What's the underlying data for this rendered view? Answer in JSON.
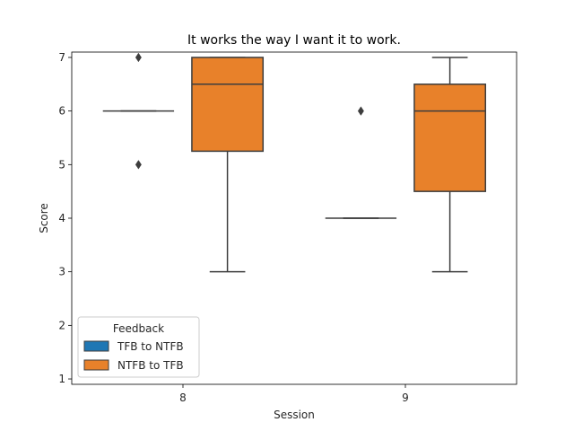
{
  "chart_data": {
    "type": "box",
    "title": "It works the way I want it to work.",
    "xlabel": "Session",
    "ylabel": "Score",
    "categories": [
      "8",
      "9"
    ],
    "ylim": [
      0.9,
      7.1
    ],
    "yticks": [
      1,
      2,
      3,
      4,
      5,
      6,
      7
    ],
    "legend": {
      "title": "Feedback",
      "placement": "lower-left",
      "entries": [
        "TFB to NTFB",
        "NTFB to TFB"
      ]
    },
    "series": [
      {
        "name": "TFB to NTFB",
        "color": "#1f77b4",
        "boxes": [
          {
            "category": "8",
            "min": 6,
            "q1": 6,
            "median": 6,
            "q3": 6,
            "max": 6,
            "outliers": [
              7,
              5
            ]
          },
          {
            "category": "9",
            "min": 4,
            "q1": 4,
            "median": 4,
            "q3": 4,
            "max": 4,
            "outliers": [
              6
            ]
          }
        ]
      },
      {
        "name": "NTFB to TFB",
        "color": "#e8812a",
        "boxes": [
          {
            "category": "8",
            "min": 3,
            "q1": 5.25,
            "median": 6.5,
            "q3": 7,
            "max": 7,
            "outliers": []
          },
          {
            "category": "9",
            "min": 3,
            "q1": 4.5,
            "median": 6,
            "q3": 6.5,
            "max": 7,
            "outliers": []
          }
        ]
      }
    ]
  }
}
